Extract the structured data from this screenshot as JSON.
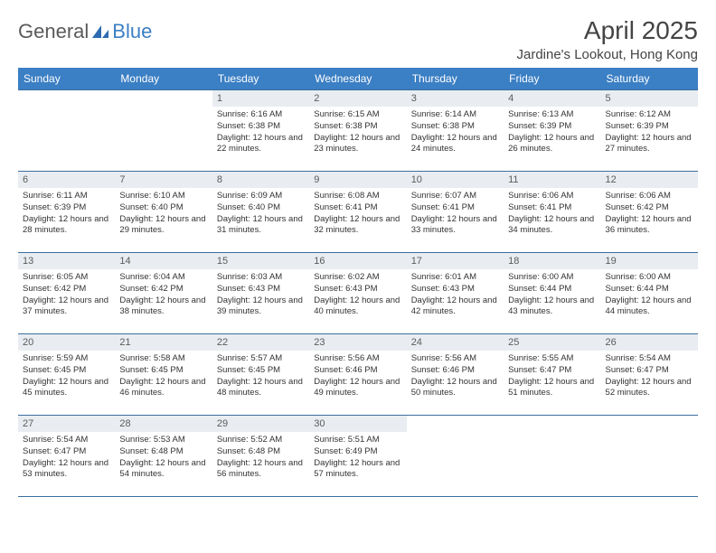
{
  "logo": {
    "text1": "General",
    "text2": "Blue"
  },
  "title": "April 2025",
  "location": "Jardine's Lookout, Hong Kong",
  "colors": {
    "header_bg": "#3b7fc4",
    "header_text": "#ffffff",
    "daynum_bg": "#e9edf1",
    "border": "#3b6fa0",
    "body_text": "#333333",
    "logo_gray": "#5a5a5a",
    "logo_blue": "#3b7fc4"
  },
  "font": {
    "day_text_size": 9.5,
    "header_size": 12,
    "title_size": 28,
    "location_size": 15
  },
  "weekdays": [
    "Sunday",
    "Monday",
    "Tuesday",
    "Wednesday",
    "Thursday",
    "Friday",
    "Saturday"
  ],
  "weeks": [
    [
      {
        "empty": true
      },
      {
        "empty": true
      },
      {
        "day": "1",
        "sunrise": "6:16 AM",
        "sunset": "6:38 PM",
        "daylight": "12 hours and 22 minutes."
      },
      {
        "day": "2",
        "sunrise": "6:15 AM",
        "sunset": "6:38 PM",
        "daylight": "12 hours and 23 minutes."
      },
      {
        "day": "3",
        "sunrise": "6:14 AM",
        "sunset": "6:38 PM",
        "daylight": "12 hours and 24 minutes."
      },
      {
        "day": "4",
        "sunrise": "6:13 AM",
        "sunset": "6:39 PM",
        "daylight": "12 hours and 26 minutes."
      },
      {
        "day": "5",
        "sunrise": "6:12 AM",
        "sunset": "6:39 PM",
        "daylight": "12 hours and 27 minutes."
      }
    ],
    [
      {
        "day": "6",
        "sunrise": "6:11 AM",
        "sunset": "6:39 PM",
        "daylight": "12 hours and 28 minutes."
      },
      {
        "day": "7",
        "sunrise": "6:10 AM",
        "sunset": "6:40 PM",
        "daylight": "12 hours and 29 minutes."
      },
      {
        "day": "8",
        "sunrise": "6:09 AM",
        "sunset": "6:40 PM",
        "daylight": "12 hours and 31 minutes."
      },
      {
        "day": "9",
        "sunrise": "6:08 AM",
        "sunset": "6:41 PM",
        "daylight": "12 hours and 32 minutes."
      },
      {
        "day": "10",
        "sunrise": "6:07 AM",
        "sunset": "6:41 PM",
        "daylight": "12 hours and 33 minutes."
      },
      {
        "day": "11",
        "sunrise": "6:06 AM",
        "sunset": "6:41 PM",
        "daylight": "12 hours and 34 minutes."
      },
      {
        "day": "12",
        "sunrise": "6:06 AM",
        "sunset": "6:42 PM",
        "daylight": "12 hours and 36 minutes."
      }
    ],
    [
      {
        "day": "13",
        "sunrise": "6:05 AM",
        "sunset": "6:42 PM",
        "daylight": "12 hours and 37 minutes."
      },
      {
        "day": "14",
        "sunrise": "6:04 AM",
        "sunset": "6:42 PM",
        "daylight": "12 hours and 38 minutes."
      },
      {
        "day": "15",
        "sunrise": "6:03 AM",
        "sunset": "6:43 PM",
        "daylight": "12 hours and 39 minutes."
      },
      {
        "day": "16",
        "sunrise": "6:02 AM",
        "sunset": "6:43 PM",
        "daylight": "12 hours and 40 minutes."
      },
      {
        "day": "17",
        "sunrise": "6:01 AM",
        "sunset": "6:43 PM",
        "daylight": "12 hours and 42 minutes."
      },
      {
        "day": "18",
        "sunrise": "6:00 AM",
        "sunset": "6:44 PM",
        "daylight": "12 hours and 43 minutes."
      },
      {
        "day": "19",
        "sunrise": "6:00 AM",
        "sunset": "6:44 PM",
        "daylight": "12 hours and 44 minutes."
      }
    ],
    [
      {
        "day": "20",
        "sunrise": "5:59 AM",
        "sunset": "6:45 PM",
        "daylight": "12 hours and 45 minutes."
      },
      {
        "day": "21",
        "sunrise": "5:58 AM",
        "sunset": "6:45 PM",
        "daylight": "12 hours and 46 minutes."
      },
      {
        "day": "22",
        "sunrise": "5:57 AM",
        "sunset": "6:45 PM",
        "daylight": "12 hours and 48 minutes."
      },
      {
        "day": "23",
        "sunrise": "5:56 AM",
        "sunset": "6:46 PM",
        "daylight": "12 hours and 49 minutes."
      },
      {
        "day": "24",
        "sunrise": "5:56 AM",
        "sunset": "6:46 PM",
        "daylight": "12 hours and 50 minutes."
      },
      {
        "day": "25",
        "sunrise": "5:55 AM",
        "sunset": "6:47 PM",
        "daylight": "12 hours and 51 minutes."
      },
      {
        "day": "26",
        "sunrise": "5:54 AM",
        "sunset": "6:47 PM",
        "daylight": "12 hours and 52 minutes."
      }
    ],
    [
      {
        "day": "27",
        "sunrise": "5:54 AM",
        "sunset": "6:47 PM",
        "daylight": "12 hours and 53 minutes."
      },
      {
        "day": "28",
        "sunrise": "5:53 AM",
        "sunset": "6:48 PM",
        "daylight": "12 hours and 54 minutes."
      },
      {
        "day": "29",
        "sunrise": "5:52 AM",
        "sunset": "6:48 PM",
        "daylight": "12 hours and 56 minutes."
      },
      {
        "day": "30",
        "sunrise": "5:51 AM",
        "sunset": "6:49 PM",
        "daylight": "12 hours and 57 minutes."
      },
      {
        "empty": true
      },
      {
        "empty": true
      },
      {
        "empty": true
      }
    ]
  ],
  "labels": {
    "sunrise": "Sunrise:",
    "sunset": "Sunset:",
    "daylight": "Daylight:"
  }
}
